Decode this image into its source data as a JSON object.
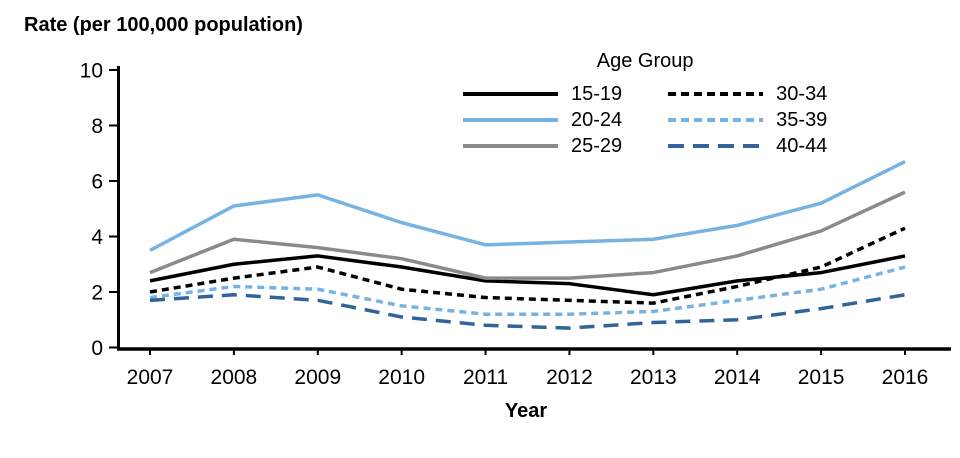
{
  "chart_data": {
    "type": "line",
    "title": "Rate (per 100,000 population)",
    "xlabel": "Year",
    "ylabel": "Rate (per 100,000 population)",
    "legend_title": "Age Group",
    "legend_position": "top-center",
    "grid": false,
    "x": [
      2007,
      2008,
      2009,
      2010,
      2011,
      2012,
      2013,
      2014,
      2015,
      2016
    ],
    "y_ticks": [
      0,
      2,
      4,
      6,
      8,
      10
    ],
    "ylim": [
      0,
      10
    ],
    "axis_color": "#000000",
    "series": [
      {
        "name": "15-19",
        "color": "#000000",
        "dash": "solid",
        "values": [
          2.4,
          3.0,
          3.3,
          2.9,
          2.4,
          2.3,
          1.9,
          2.4,
          2.7,
          3.3
        ]
      },
      {
        "name": "20-24",
        "color": "#76B3E3",
        "dash": "solid",
        "values": [
          3.5,
          5.1,
          5.5,
          4.5,
          3.7,
          3.8,
          3.9,
          4.4,
          5.2,
          6.7
        ]
      },
      {
        "name": "25-29",
        "color": "#8A8A8A",
        "dash": "solid",
        "values": [
          2.7,
          3.9,
          3.6,
          3.2,
          2.5,
          2.5,
          2.7,
          3.3,
          4.2,
          5.6
        ]
      },
      {
        "name": "30-34",
        "color": "#000000",
        "dash": "dotted",
        "values": [
          2.0,
          2.5,
          2.9,
          2.1,
          1.8,
          1.7,
          1.6,
          2.2,
          2.9,
          4.3
        ]
      },
      {
        "name": "35-39",
        "color": "#76B3E3",
        "dash": "dotted",
        "values": [
          1.8,
          2.2,
          2.1,
          1.5,
          1.2,
          1.2,
          1.3,
          1.7,
          2.1,
          2.9
        ]
      },
      {
        "name": "40-44",
        "color": "#30649B",
        "dash": "dashed",
        "values": [
          1.7,
          1.9,
          1.7,
          1.1,
          0.8,
          0.7,
          0.9,
          1.0,
          1.4,
          1.9
        ]
      }
    ]
  }
}
